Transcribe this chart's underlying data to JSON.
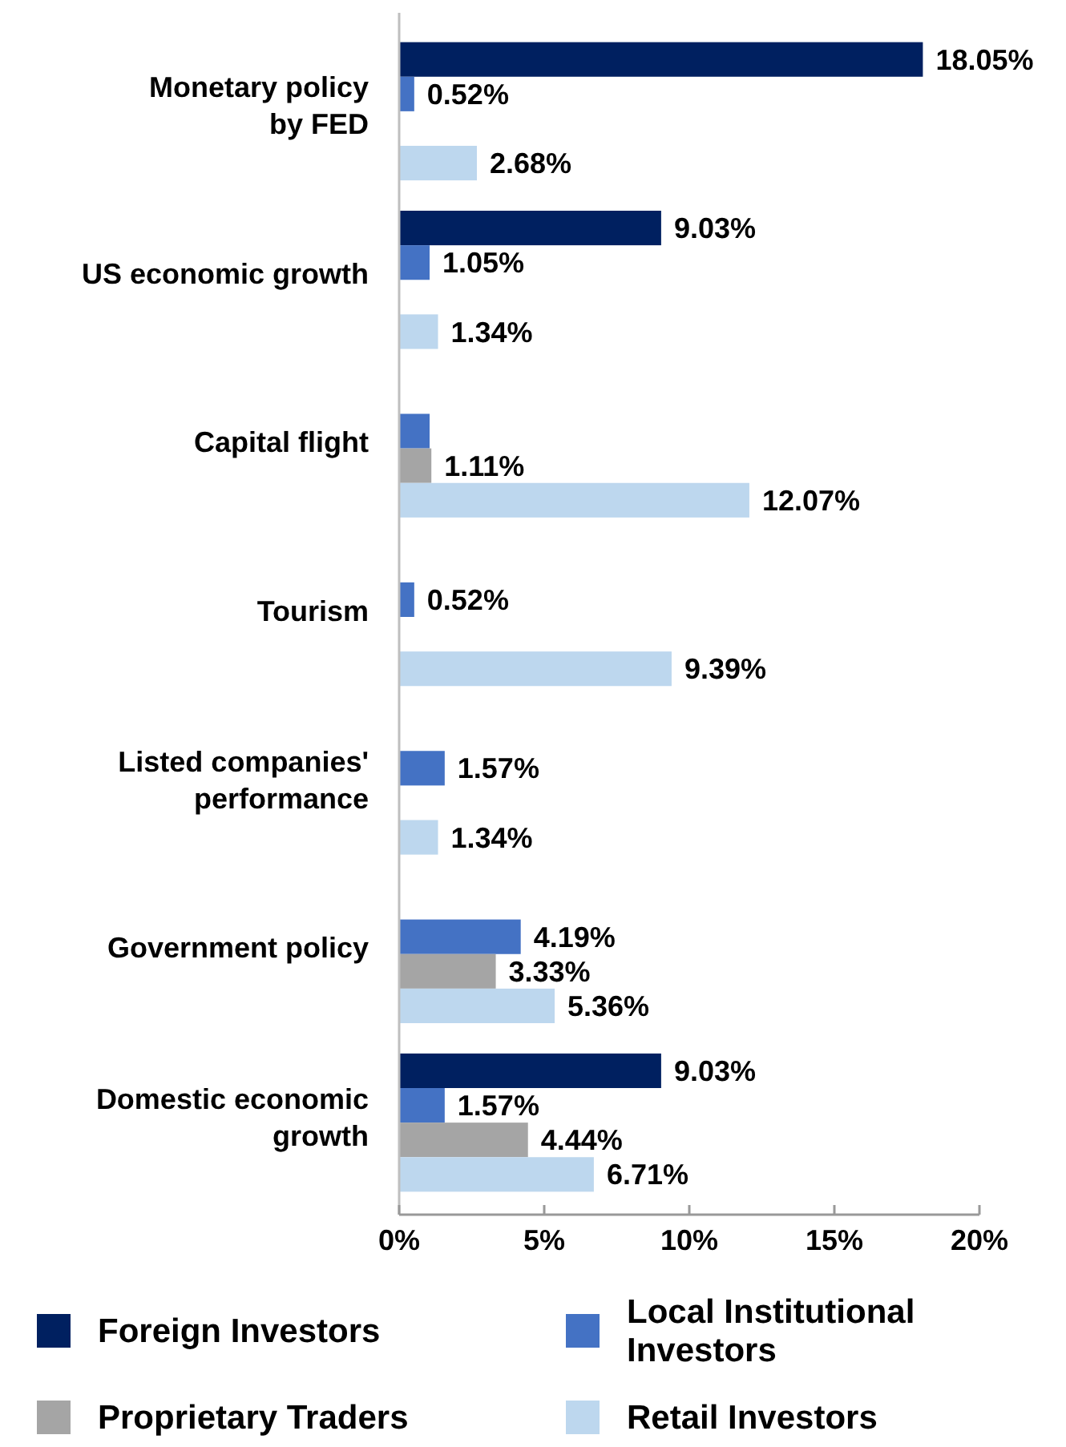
{
  "chart_data": {
    "type": "bar",
    "orientation": "horizontal",
    "categories": [
      "Monetary policy by FED",
      "US economic growth",
      "Capital flight",
      "Tourism",
      "Listed companies' performance",
      "Government policy",
      "Domestic economic growth"
    ],
    "series": [
      {
        "name": "Foreign Investors",
        "color": "#002060",
        "values": [
          18.05,
          9.03,
          null,
          null,
          null,
          null,
          9.03
        ],
        "value_labels": [
          "18.05%",
          "9.03%",
          null,
          null,
          null,
          null,
          "9.03%"
        ]
      },
      {
        "name": "Local Institutional Investors",
        "color": "#4472c4",
        "values": [
          0.52,
          1.05,
          1.05,
          0.52,
          1.57,
          4.19,
          1.57
        ],
        "value_labels": [
          "0.52%",
          "1.05%",
          null,
          "0.52%",
          "1.57%",
          "4.19%",
          "1.57%"
        ]
      },
      {
        "name": "Proprietary Traders",
        "color": "#a5a5a5",
        "values": [
          null,
          null,
          1.11,
          null,
          null,
          3.33,
          4.44
        ],
        "value_labels": [
          null,
          null,
          "1.11%",
          null,
          null,
          "3.33%",
          "4.44%"
        ]
      },
      {
        "name": "Retail Investors",
        "color": "#bdd7ee",
        "values": [
          2.68,
          1.34,
          12.07,
          9.39,
          1.34,
          5.36,
          6.71
        ],
        "value_labels": [
          "2.68%",
          "1.34%",
          "12.07%",
          "9.39%",
          "1.34%",
          "5.36%",
          "6.71%"
        ]
      }
    ],
    "xlim": [
      0,
      20
    ],
    "xticks": [
      {
        "value": 0,
        "label": "0%"
      },
      {
        "value": 5,
        "label": "5%"
      },
      {
        "value": 10,
        "label": "10%"
      },
      {
        "value": 15,
        "label": "15%"
      },
      {
        "value": 20,
        "label": "20%"
      }
    ],
    "grid": false,
    "legend": "bottom"
  }
}
